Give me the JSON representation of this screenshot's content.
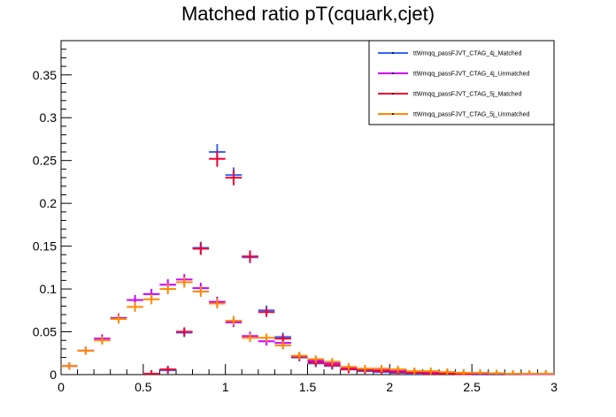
{
  "chart_data": {
    "type": "scatter",
    "title": "Matched ratio pT(cquark,cjet)",
    "xlabel": "",
    "ylabel": "",
    "xlim": [
      0,
      3
    ],
    "ylim": [
      0,
      0.39
    ],
    "bin_width": 0.1,
    "x_ticks": [
      "0",
      "0.5",
      "1",
      "1.5",
      "2",
      "2.5",
      "3"
    ],
    "y_ticks": [
      "0",
      "0.05",
      "0.1",
      "0.15",
      "0.2",
      "0.25",
      "0.3",
      "0.35"
    ],
    "x_tick_values": [
      0,
      0.5,
      1,
      1.5,
      2,
      2.5,
      3
    ],
    "y_tick_values": [
      0,
      0.05,
      0.1,
      0.15,
      0.2,
      0.25,
      0.3,
      0.35
    ],
    "legend_position": "top-right",
    "series": [
      {
        "name": "ttWmqq_passFJVT_CTAG_4j_Matched",
        "color": "#3366ff",
        "x": [
          0.55,
          0.65,
          0.75,
          0.85,
          0.95,
          1.05,
          1.15,
          1.25,
          1.35,
          1.45,
          1.55,
          1.65,
          1.75,
          1.85,
          1.95,
          2.05,
          2.15,
          2.25,
          2.35,
          2.45
        ],
        "y": [
          0.001,
          0.005,
          0.049,
          0.148,
          0.26,
          0.233,
          0.137,
          0.075,
          0.044,
          0.02,
          0.013,
          0.01,
          0.006,
          0.004,
          0.003,
          0.002,
          0.001,
          0.001,
          0.001,
          0.0005
        ]
      },
      {
        "name": "ttWmqq_passFJVT_CTAG_4j_Unmatched",
        "color": "#cc00ff",
        "x": [
          0.05,
          0.15,
          0.25,
          0.35,
          0.45,
          0.55,
          0.65,
          0.75,
          0.85,
          0.95,
          1.05,
          1.15,
          1.25,
          1.35,
          1.45,
          1.55,
          1.65,
          1.75,
          1.85,
          1.95,
          2.05,
          2.15,
          2.25,
          2.35,
          2.45,
          2.55,
          2.65,
          2.75,
          2.85,
          2.95
        ],
        "y": [
          0.01,
          0.028,
          0.042,
          0.066,
          0.087,
          0.094,
          0.105,
          0.111,
          0.101,
          0.085,
          0.061,
          0.045,
          0.039,
          0.037,
          0.021,
          0.016,
          0.013,
          0.008,
          0.006,
          0.005,
          0.004,
          0.003,
          0.002,
          0.002,
          0.0015,
          0.001,
          0.001,
          0.0008,
          0.0005,
          0.0005
        ]
      },
      {
        "name": "ttWmqq_passFJVT_CTAG_5j_Matched",
        "color": "#ee0033",
        "x": [
          0.55,
          0.65,
          0.75,
          0.85,
          0.95,
          1.05,
          1.15,
          1.25,
          1.35,
          1.45,
          1.55,
          1.65,
          1.75,
          1.85,
          1.95,
          2.05,
          2.15,
          2.25,
          2.35,
          2.45
        ],
        "y": [
          0.001,
          0.006,
          0.05,
          0.147,
          0.252,
          0.23,
          0.138,
          0.073,
          0.042,
          0.021,
          0.014,
          0.011,
          0.006,
          0.005,
          0.004,
          0.003,
          0.002,
          0.001,
          0.001,
          0.0005
        ]
      },
      {
        "name": "ttWmqq_passFJVT_CTAG_5j_Unmatched",
        "color": "#ff8800",
        "x": [
          0.05,
          0.15,
          0.25,
          0.35,
          0.45,
          0.55,
          0.65,
          0.75,
          0.85,
          0.95,
          1.05,
          1.15,
          1.25,
          1.35,
          1.45,
          1.55,
          1.65,
          1.75,
          1.85,
          1.95,
          2.05,
          2.15,
          2.25,
          2.35,
          2.45,
          2.55,
          2.65,
          2.75,
          2.85,
          2.95
        ],
        "y": [
          0.01,
          0.028,
          0.04,
          0.065,
          0.079,
          0.088,
          0.1,
          0.108,
          0.097,
          0.083,
          0.063,
          0.043,
          0.043,
          0.034,
          0.022,
          0.018,
          0.015,
          0.009,
          0.007,
          0.007,
          0.006,
          0.004,
          0.004,
          0.003,
          0.002,
          0.002,
          0.0015,
          0.001,
          0.001,
          0.001
        ]
      }
    ]
  }
}
